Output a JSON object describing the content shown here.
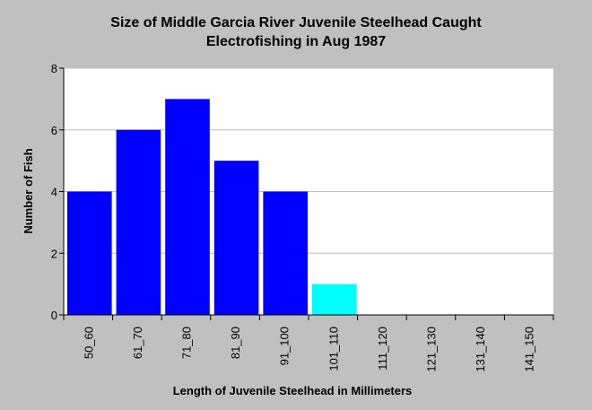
{
  "chart_data": {
    "type": "bar",
    "title_lines": [
      "Size of Middle Garcia River Juvenile Steelhead Caught",
      "Electrofishing in Aug 1987"
    ],
    "xlabel": "Length of Juvenile Steelhead in Millimeters",
    "ylabel": "Number of Fish",
    "categories": [
      "50_60",
      "61_70",
      "71_80",
      "81_90",
      "91_100",
      "101_110",
      "111_120",
      "121_130",
      "131_140",
      "141_150"
    ],
    "values": [
      4,
      6,
      7,
      5,
      4,
      1,
      0,
      0,
      0,
      0
    ],
    "bar_colors": [
      "#0000ff",
      "#0000ff",
      "#0000ff",
      "#0000ff",
      "#0000ff",
      "#00ffff",
      "#0000ff",
      "#0000ff",
      "#0000ff",
      "#0000ff"
    ],
    "ylim": [
      0,
      8
    ],
    "yticks": [
      0,
      2,
      4,
      6,
      8
    ],
    "grid": true,
    "plot_background": "#ffffff",
    "page_background": "#c0c0c0"
  }
}
